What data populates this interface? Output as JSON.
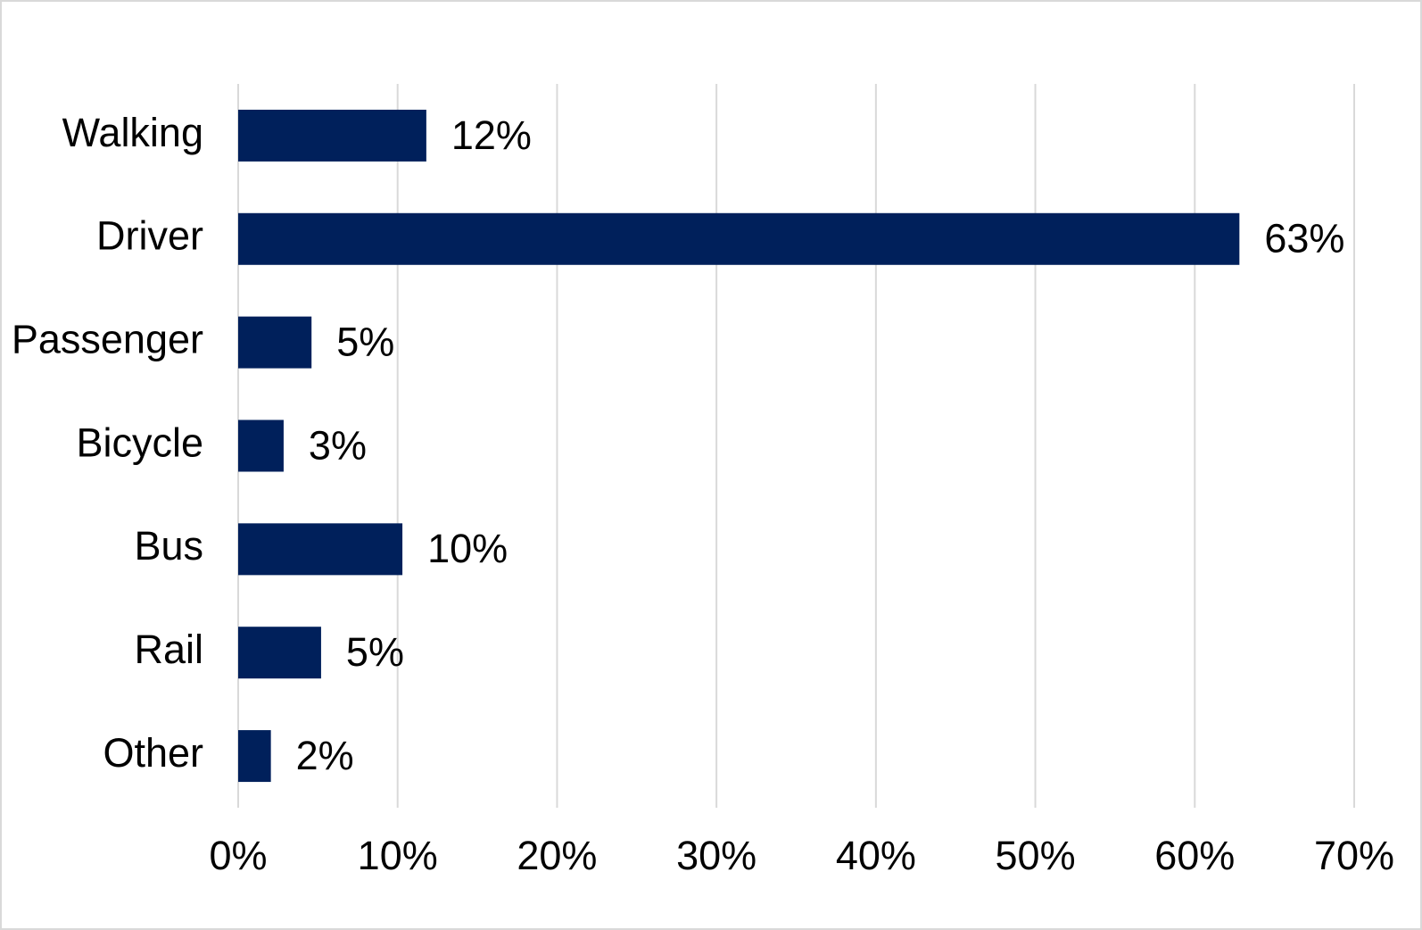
{
  "chart_data": {
    "type": "bar",
    "orientation": "horizontal",
    "categories": [
      "Walking",
      "Driver",
      "Passenger",
      "Bicycle",
      "Bus",
      "Rail",
      "Other"
    ],
    "values": [
      11.8,
      62.8,
      4.6,
      2.85,
      10.3,
      5.2,
      2.05
    ],
    "value_labels": [
      "12%",
      "63%",
      "5%",
      "3%",
      "10%",
      "5%",
      "2%"
    ],
    "color": "#00205b",
    "xlim": [
      0,
      70
    ],
    "xticks": [
      {
        "value": 0,
        "label": "0%"
      },
      {
        "value": 10,
        "label": "10%"
      },
      {
        "value": 20,
        "label": "20%"
      },
      {
        "value": 30,
        "label": "30%"
      },
      {
        "value": 40,
        "label": "40%"
      },
      {
        "value": 50,
        "label": "50%"
      },
      {
        "value": 60,
        "label": "60%"
      },
      {
        "value": 70,
        "label": "70%"
      }
    ],
    "grid": true
  }
}
